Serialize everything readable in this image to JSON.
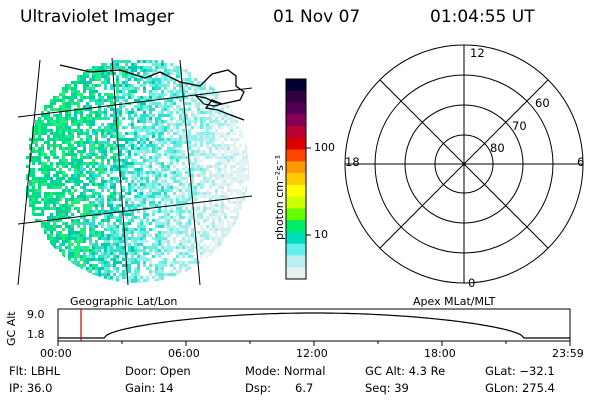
{
  "header": {
    "instrument": "Ultraviolet Imager",
    "date": "01 Nov 07",
    "time": "01:04:55 UT"
  },
  "geo_panel": {
    "label": "Geographic Lat/Lon"
  },
  "polar_panel": {
    "label": "Apex MLat/MLT",
    "mlt_labels": {
      "top": "12",
      "left": "18",
      "right": "6",
      "bottom": "0"
    },
    "lat_labels": [
      "60",
      "70",
      "80"
    ]
  },
  "colorbar": {
    "unit_label": "photon cm⁻²s⁻¹",
    "ticks": [
      "100",
      "10"
    ],
    "colors": [
      "#000033",
      "#330044",
      "#550055",
      "#880055",
      "#bb0033",
      "#dd0000",
      "#ff4400",
      "#ff9900",
      "#ffcc00",
      "#ffff00",
      "#ccff00",
      "#66ff00",
      "#00ee66",
      "#00ddbb",
      "#66eeee",
      "#bbeeee",
      "#e6f2f2"
    ]
  },
  "orbit": {
    "ylabel": "GC Alt",
    "y_ticks": [
      "9.0",
      "1.8"
    ],
    "x_ticks": [
      "00:00",
      "06:00",
      "12:00",
      "18:00",
      "23:59"
    ],
    "marker_time": "01:04:55"
  },
  "info": {
    "row1": {
      "flt": "Flt: LBHL",
      "door": "Door: Open",
      "mode": "Mode: Normal",
      "gcalt": "GC Alt: 4.3 Re",
      "glat": "GLat: −32.1"
    },
    "row2": {
      "ip": "IP: 36.0",
      "gain": "Gain: 14",
      "dsp_label": "Dsp:",
      "dsp_value": "6.7",
      "seq": "Seq: 39",
      "glon": "GLon: 275.4"
    }
  }
}
